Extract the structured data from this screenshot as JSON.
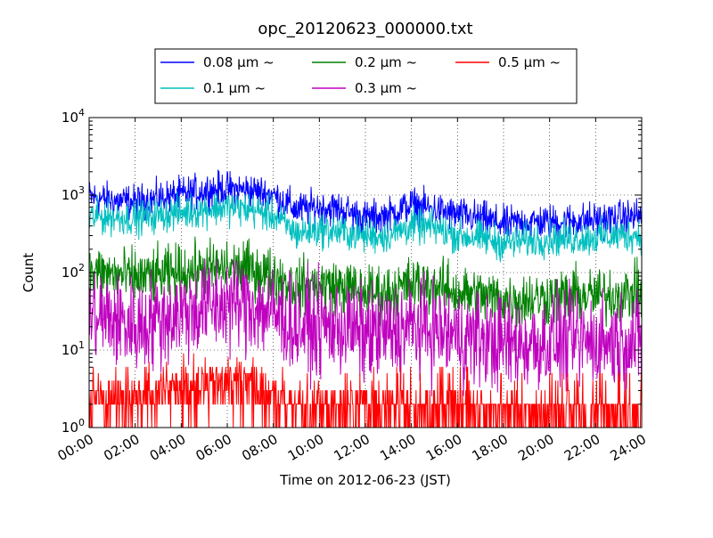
{
  "chart_data": {
    "type": "line",
    "title": "opc_20120623_000000.txt",
    "xlabel": "Time on 2012-06-23 (JST)",
    "ylabel": "Count",
    "yscale": "log",
    "xlim": [
      "00:00",
      "24:00"
    ],
    "ylim": [
      1,
      10000
    ],
    "grid": true,
    "legend_position": "top-center-outside",
    "x_ticks": [
      "00:00",
      "02:00",
      "04:00",
      "06:00",
      "08:00",
      "10:00",
      "12:00",
      "14:00",
      "16:00",
      "18:00",
      "20:00",
      "22:00",
      "24:00"
    ],
    "y_ticks": [
      {
        "value": 1,
        "base": "10",
        "exp": "0"
      },
      {
        "value": 10,
        "base": "10",
        "exp": "1"
      },
      {
        "value": 100,
        "base": "10",
        "exp": "2"
      },
      {
        "value": 1000,
        "base": "10",
        "exp": "3"
      },
      {
        "value": 10000,
        "base": "10",
        "exp": "4"
      }
    ],
    "x": [
      "00:00",
      "01:00",
      "02:00",
      "03:00",
      "04:00",
      "05:00",
      "06:00",
      "07:00",
      "08:00",
      "09:00",
      "10:00",
      "11:00",
      "12:00",
      "13:00",
      "14:00",
      "15:00",
      "16:00",
      "17:00",
      "18:00",
      "19:00",
      "20:00",
      "21:00",
      "22:00",
      "23:00",
      "24:00"
    ],
    "series": [
      {
        "name": "0.08 μm ~",
        "color": "#0000ff",
        "noise": 0.05,
        "values": [
          950,
          850,
          800,
          900,
          1000,
          1150,
          1200,
          1150,
          1000,
          650,
          700,
          650,
          500,
          550,
          750,
          650,
          550,
          500,
          420,
          450,
          450,
          470,
          480,
          500,
          550
        ]
      },
      {
        "name": "0.1 μm ~",
        "color": "#00bfbf",
        "noise": 0.05,
        "values": [
          520,
          520,
          500,
          550,
          600,
          650,
          700,
          650,
          550,
          320,
          360,
          330,
          300,
          300,
          400,
          380,
          300,
          280,
          240,
          260,
          270,
          275,
          285,
          300,
          310
        ]
      },
      {
        "name": "0.2 μm ~",
        "color": "#008000",
        "noise": 0.08,
        "values": [
          100,
          95,
          85,
          90,
          100,
          110,
          115,
          110,
          90,
          65,
          70,
          65,
          55,
          55,
          70,
          65,
          55,
          50,
          45,
          45,
          48,
          50,
          50,
          52,
          55
        ]
      },
      {
        "name": "0.3 μm ~",
        "color": "#bf00bf",
        "noise": 0.14,
        "values": [
          28,
          25,
          20,
          25,
          30,
          35,
          40,
          38,
          30,
          20,
          20,
          20,
          16,
          16,
          20,
          18,
          15,
          14,
          12,
          12,
          13,
          13,
          13,
          13,
          13
        ]
      },
      {
        "name": "0.5 μm ~",
        "color": "#ff0000",
        "noise": 0.0,
        "values": [
          2,
          2,
          2,
          2,
          3,
          3,
          3,
          3,
          2,
          1.5,
          1.5,
          1.5,
          1.5,
          1.5,
          1.5,
          1.5,
          1.5,
          1.5,
          1.3,
          1.3,
          1.3,
          1.3,
          1.3,
          1.3,
          1.3
        ]
      }
    ]
  }
}
